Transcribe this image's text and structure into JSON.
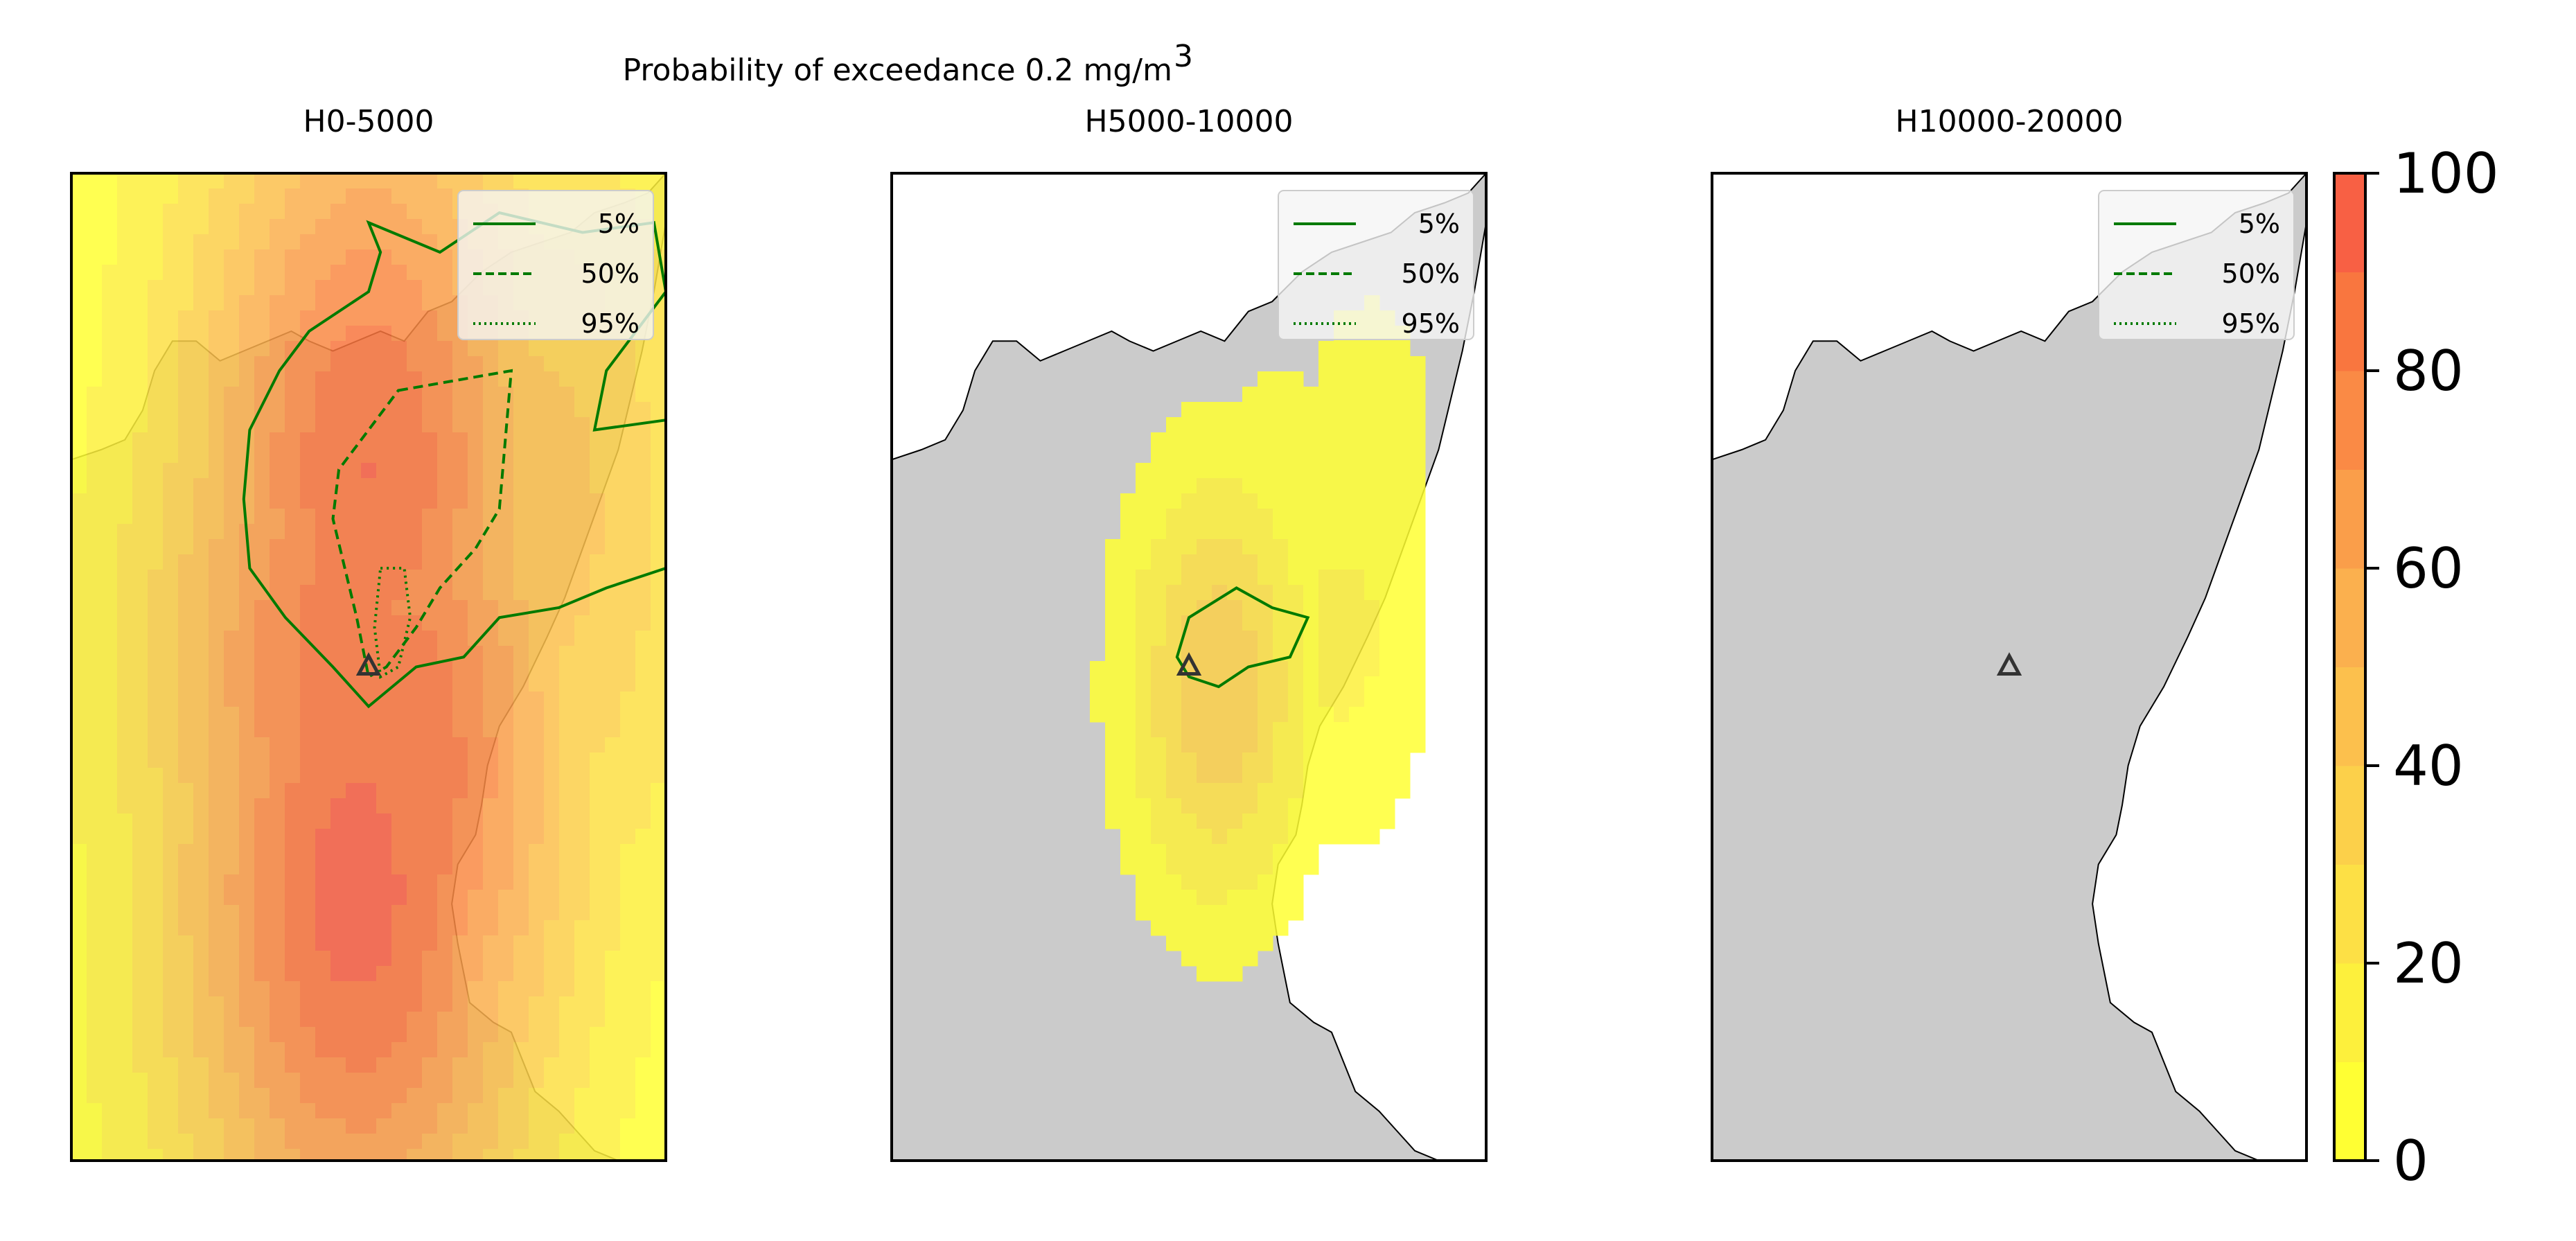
{
  "chart_data": {
    "type": "heatmap",
    "title": "Probability of exceedance 0.2 mg/m",
    "title_superscript": "3",
    "colorbar": {
      "ticks": [
        0,
        20,
        40,
        60,
        80,
        100
      ],
      "range": [
        0,
        100
      ],
      "levels": [
        0,
        10,
        20,
        30,
        40,
        50,
        60,
        70,
        80,
        90,
        100
      ],
      "colors": [
        "#ffff33",
        "#fdf03c",
        "#fde045",
        "#fcd04a",
        "#fcc04d",
        "#fbb04e",
        "#fa9e4a",
        "#fa8a45",
        "#f9763f",
        "#f86044"
      ]
    },
    "legend": [
      {
        "label": "5%",
        "style": "solid"
      },
      {
        "label": "50%",
        "style": "dashed"
      },
      {
        "label": "95%",
        "style": "dotted"
      }
    ],
    "contour_color": "#007a00",
    "land_color": "#cbcbcb",
    "panels": [
      {
        "label": "H0-5000",
        "plume": [
          {
            "c": 0.8,
            "r": 0.3,
            "v": 10
          },
          {
            "c": 0.78,
            "r": 0.22,
            "v": 10
          },
          {
            "c": 0.62,
            "r": 0.25,
            "v": 25
          },
          {
            "c": 0.5,
            "r": 0.35,
            "v": 45
          },
          {
            "c": 0.48,
            "r": 0.4,
            "v": 70
          },
          {
            "c": 0.45,
            "r": 0.5,
            "v": 85
          },
          {
            "c": 0.5,
            "r": 0.3,
            "v": 90
          },
          {
            "c": 0.62,
            "r": 0.35,
            "v": 60
          },
          {
            "c": 0.78,
            "r": 0.35,
            "v": 45
          },
          {
            "c": 0.85,
            "r": 0.42,
            "v": 25
          },
          {
            "c": 0.55,
            "r": 0.6,
            "v": 90
          },
          {
            "c": 0.48,
            "r": 0.72,
            "v": 95
          }
        ]
      },
      {
        "label": "H5000-10000",
        "plume": [
          {
            "c": 0.56,
            "r": 0.47,
            "v": 10
          },
          {
            "c": 0.65,
            "r": 0.38,
            "v": 8
          },
          {
            "c": 0.8,
            "r": 0.28,
            "v": 6
          },
          {
            "c": 0.55,
            "r": 0.52,
            "v": 40
          },
          {
            "c": 0.76,
            "r": 0.47,
            "v": 12
          }
        ]
      },
      {
        "label": "H10000-20000",
        "plume": []
      }
    ],
    "volcano_marker": "triangle"
  }
}
